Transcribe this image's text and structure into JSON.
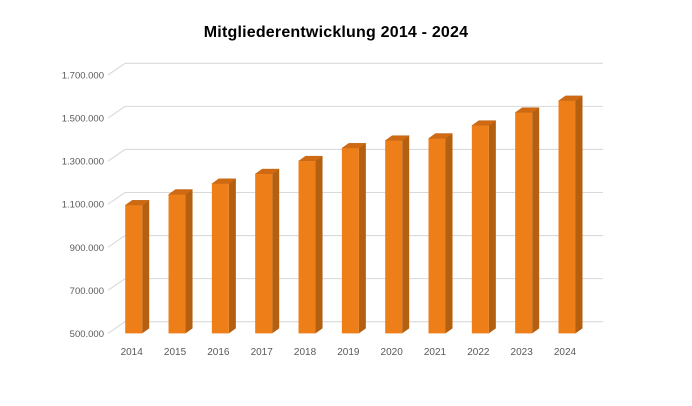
{
  "chart_data": {
    "type": "bar",
    "style": "3d-column",
    "title": "Mitgliederentwicklung 2014 - 2024",
    "xlabel": "",
    "ylabel": "",
    "categories": [
      "2014",
      "2015",
      "2016",
      "2017",
      "2018",
      "2019",
      "2020",
      "2021",
      "2022",
      "2023",
      "2024"
    ],
    "values": [
      1095000,
      1145000,
      1195000,
      1240000,
      1300000,
      1360000,
      1395000,
      1405000,
      1465000,
      1525000,
      1580000
    ],
    "ylim": [
      500000,
      1700000
    ],
    "ytick_step": 200000,
    "ytick_labels": [
      "500.000",
      "700.000",
      "900.000",
      "1.100.000",
      "1.300.000",
      "1.500.000",
      "1.700.000"
    ],
    "grid": true,
    "legend_position": "none",
    "colors": {
      "bar_front": "#EE7E17",
      "bar_side": "#B55F10",
      "bar_top": "#D06A12",
      "gridline": "#D9D9D9",
      "axis_label": "#595959",
      "title": "#000000",
      "background": "#FFFFFF"
    }
  }
}
